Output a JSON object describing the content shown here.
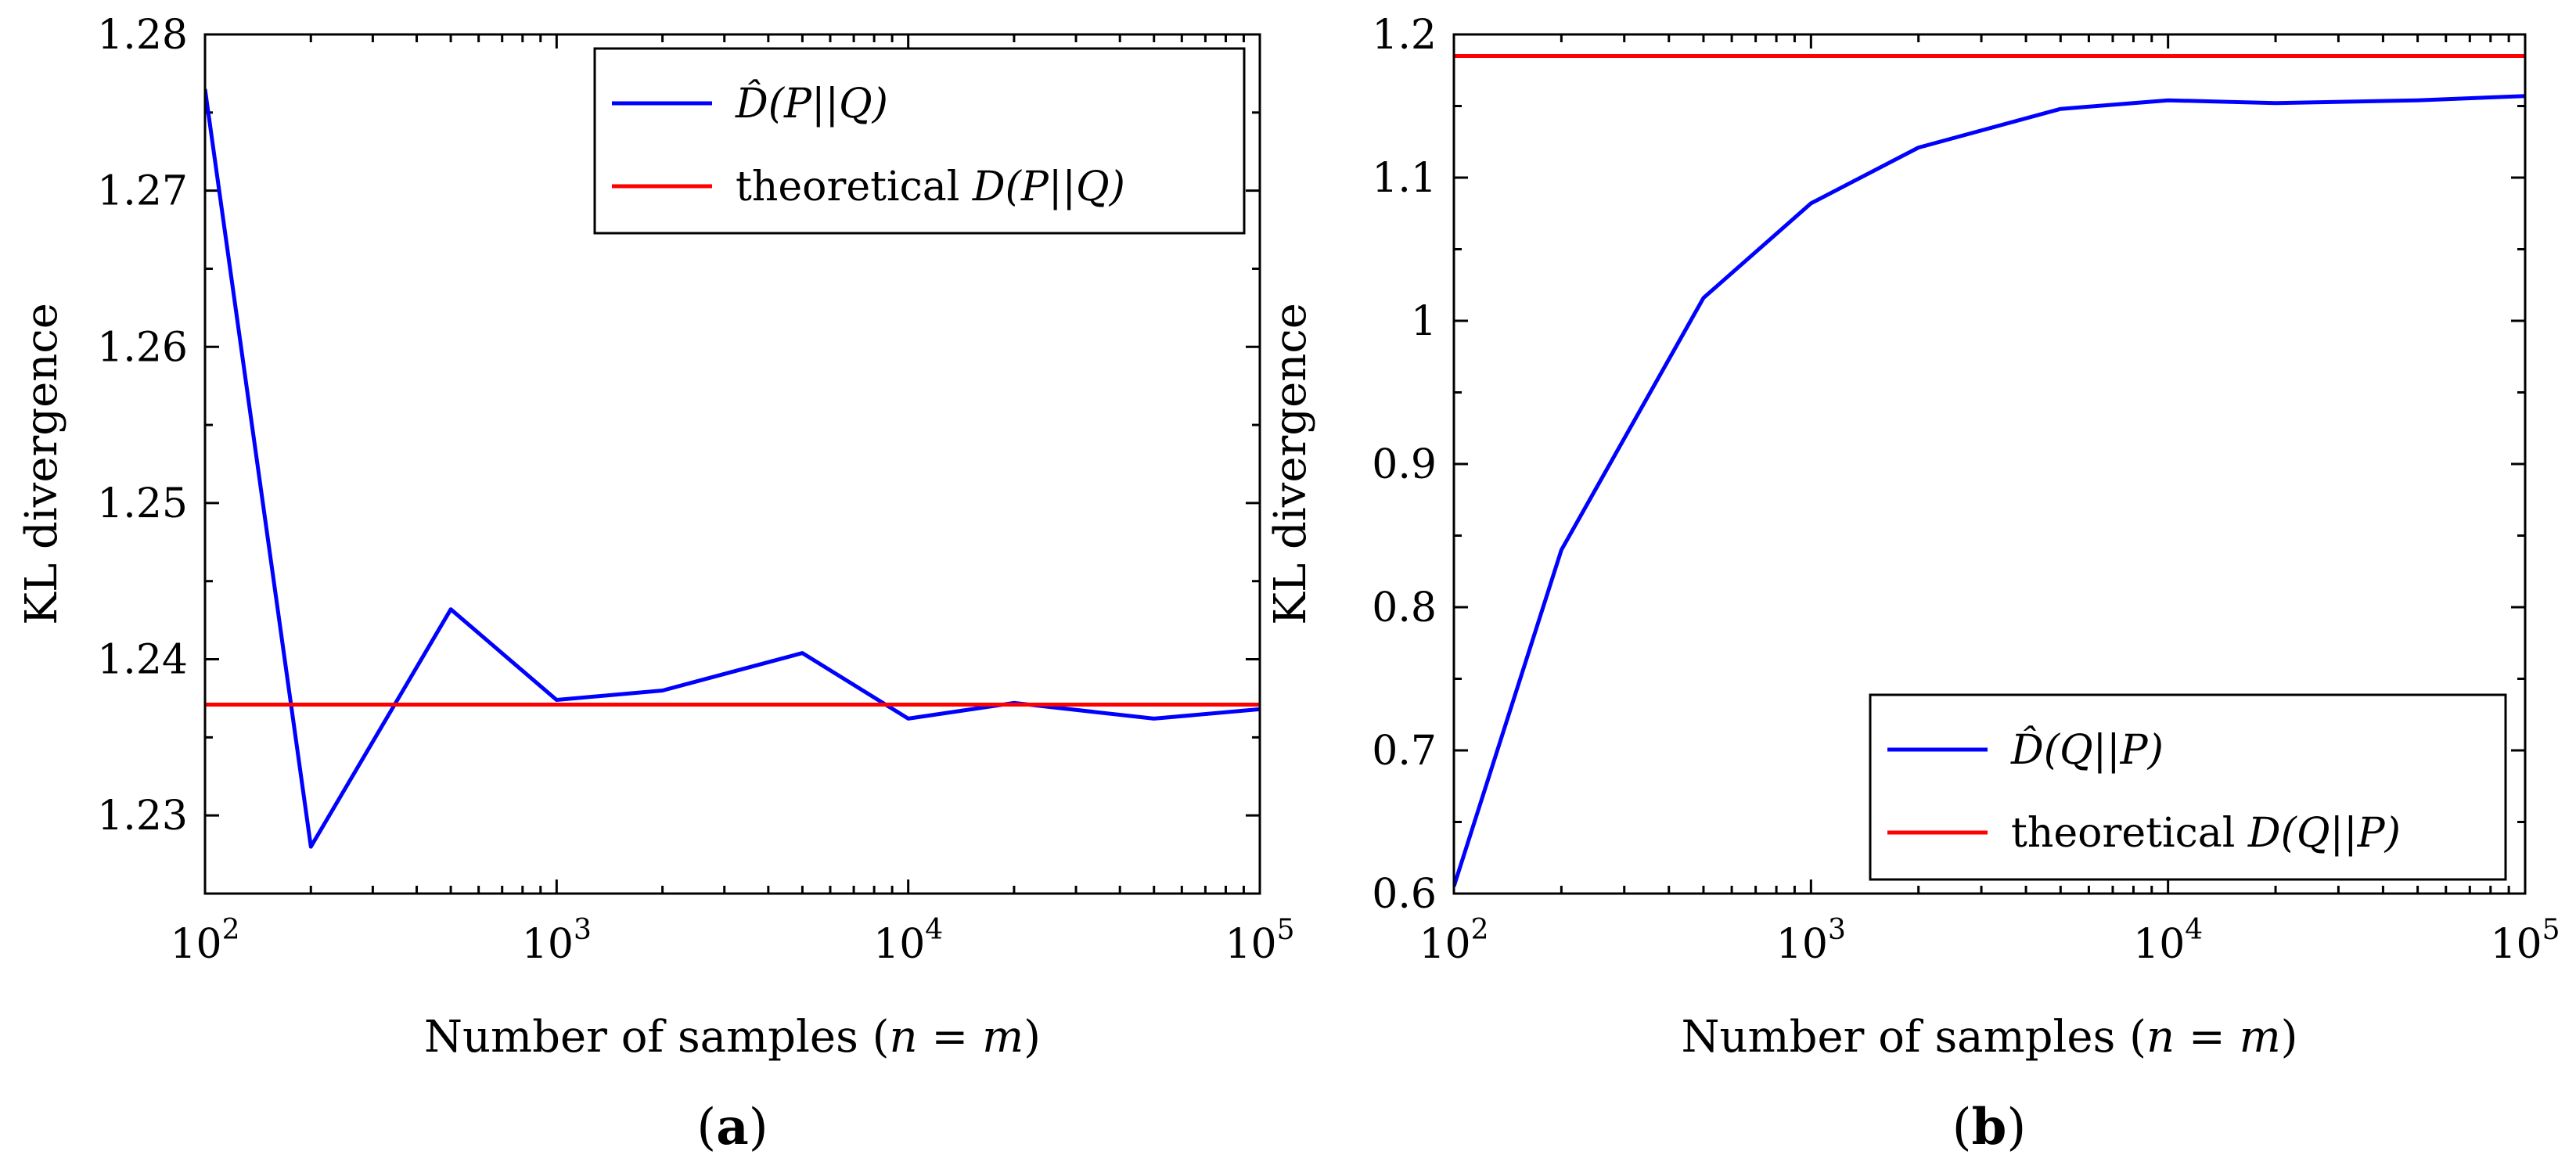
{
  "chart_data": [
    {
      "type": "line",
      "xscale": "log",
      "x": [
        100,
        200,
        500,
        1000,
        2000,
        5000,
        10000,
        20000,
        50000,
        100000
      ],
      "series": [
        {
          "name": "D̂(P||Q)",
          "color": "#0000ff",
          "values": [
            1.2765,
            1.228,
            1.2432,
            1.2374,
            1.238,
            1.2404,
            1.2362,
            1.2372,
            1.2362,
            1.2368
          ]
        },
        {
          "name": "theoretical D(P||Q)",
          "color": "#ff0000",
          "constant": 1.2371
        }
      ],
      "xlim": [
        100,
        100000
      ],
      "ylim": [
        1.225,
        1.28
      ],
      "xticks": [
        100,
        1000,
        10000,
        100000
      ],
      "xtick_labels": [
        {
          "base": "10",
          "exp": "2"
        },
        {
          "base": "10",
          "exp": "3"
        },
        {
          "base": "10",
          "exp": "4"
        },
        {
          "base": "10",
          "exp": "5"
        }
      ],
      "yticks": [
        1.23,
        1.24,
        1.25,
        1.26,
        1.27,
        1.28
      ],
      "ytick_labels": [
        "1.23",
        "1.24",
        "1.25",
        "1.26",
        "1.27",
        "1.28"
      ],
      "xlabel": "Number of samples (n = m)",
      "ylabel": "KL divergence",
      "legend_position": "top-right",
      "legend": [
        {
          "pre": "",
          "sym": "D̂",
          "post": "(P||Q)",
          "color": "#0000ff"
        },
        {
          "pre": "theoretical ",
          "sym": "D",
          "post": "(P||Q)",
          "color": "#ff0000"
        }
      ],
      "caption": "(a)",
      "caption_letter": "a"
    },
    {
      "type": "line",
      "xscale": "log",
      "x": [
        100,
        200,
        500,
        1000,
        2000,
        5000,
        10000,
        20000,
        50000,
        100000
      ],
      "series": [
        {
          "name": "D̂(Q||P)",
          "color": "#0000ff",
          "values": [
            0.605,
            0.84,
            1.016,
            1.082,
            1.121,
            1.148,
            1.154,
            1.152,
            1.154,
            1.157
          ]
        },
        {
          "name": "theoretical D(Q||P)",
          "color": "#ff0000",
          "constant": 1.185
        }
      ],
      "xlim": [
        100,
        100000
      ],
      "ylim": [
        0.6,
        1.2
      ],
      "xticks": [
        100,
        1000,
        10000,
        100000
      ],
      "xtick_labels": [
        {
          "base": "10",
          "exp": "2"
        },
        {
          "base": "10",
          "exp": "3"
        },
        {
          "base": "10",
          "exp": "4"
        },
        {
          "base": "10",
          "exp": "5"
        }
      ],
      "yticks": [
        0.6,
        0.7,
        0.8,
        0.9,
        1.0,
        1.1,
        1.2
      ],
      "ytick_labels": [
        "0.6",
        "0.7",
        "0.8",
        "0.9",
        "1",
        "1.1",
        "1.2"
      ],
      "xlabel": "Number of samples (n = m)",
      "ylabel": "KL divergence",
      "legend_position": "bottom-right",
      "legend": [
        {
          "pre": "",
          "sym": "D̂",
          "post": "(Q||P)",
          "color": "#0000ff"
        },
        {
          "pre": "theoretical ",
          "sym": "D",
          "post": "(Q||P)",
          "color": "#ff0000"
        }
      ],
      "caption": "(b)",
      "caption_letter": "b"
    }
  ]
}
